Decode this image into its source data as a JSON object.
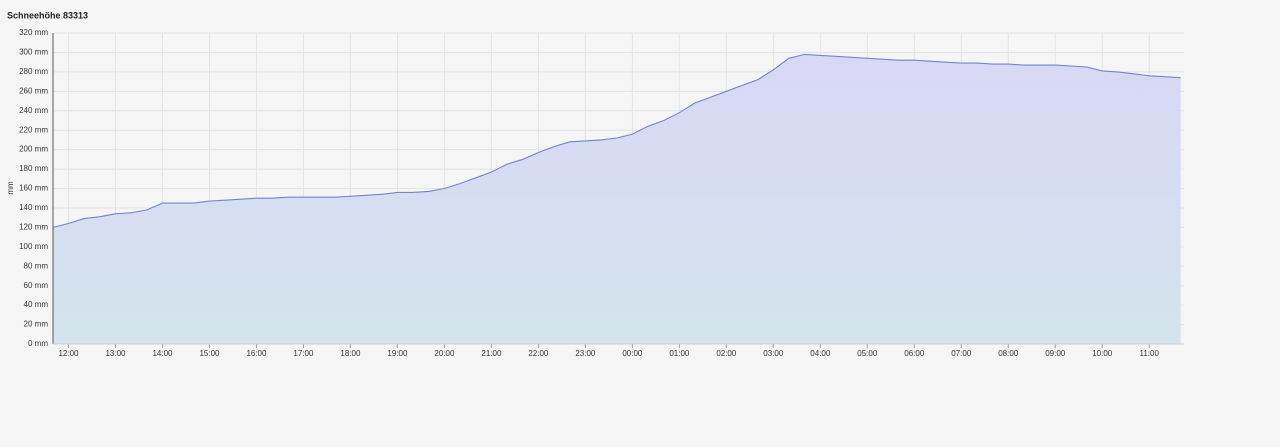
{
  "chart_data": {
    "type": "area",
    "title": "Schneehöhe 83313",
    "y_label": "mm",
    "color": "#7385cf",
    "grid": true,
    "x": [
      11.67,
      12,
      12.33,
      12.67,
      13,
      13.33,
      13.67,
      14,
      14.33,
      14.67,
      15,
      15.33,
      15.67,
      16,
      16.33,
      16.67,
      17,
      17.33,
      17.67,
      18,
      18.33,
      18.67,
      19,
      19.33,
      19.67,
      20,
      20.33,
      20.67,
      21,
      21.33,
      21.67,
      22,
      22.33,
      22.67,
      23,
      23.33,
      23.67,
      24,
      24.33,
      24.67,
      25,
      25.33,
      25.67,
      26,
      26.33,
      26.67,
      27,
      27.33,
      27.67,
      28,
      28.33,
      28.67,
      29,
      29.33,
      29.67,
      30,
      30.33,
      30.67,
      31,
      31.33,
      31.67,
      32,
      32.33,
      32.67,
      33,
      33.33,
      33.67,
      34,
      34.33,
      34.67,
      35,
      35.33,
      35.67
    ],
    "values": [
      120,
      124,
      129,
      131,
      134,
      135,
      138,
      145,
      145,
      145,
      147,
      148,
      149,
      150,
      150,
      151,
      151,
      151,
      151,
      152,
      153,
      154,
      156,
      156,
      157,
      160,
      165,
      171,
      177,
      185,
      190,
      197,
      203,
      208,
      209,
      210,
      212,
      216,
      224,
      230,
      238,
      248,
      254,
      260,
      266,
      272,
      282,
      294,
      298,
      297,
      296,
      295,
      294,
      293,
      292,
      292,
      291,
      290,
      289,
      289,
      288,
      288,
      287,
      287,
      287,
      286,
      285,
      281,
      280,
      278,
      276,
      275,
      274
    ],
    "xlim": [
      11.67,
      35.74
    ],
    "xticks": [
      {
        "value": 12,
        "label": "12:00"
      },
      {
        "value": 13,
        "label": "13:00"
      },
      {
        "value": 14,
        "label": "14:00"
      },
      {
        "value": 15,
        "label": "15:00"
      },
      {
        "value": 16,
        "label": "16:00"
      },
      {
        "value": 17,
        "label": "17:00"
      },
      {
        "value": 18,
        "label": "18:00"
      },
      {
        "value": 19,
        "label": "19:00"
      },
      {
        "value": 20,
        "label": "20:00"
      },
      {
        "value": 21,
        "label": "21:00"
      },
      {
        "value": 22,
        "label": "22:00"
      },
      {
        "value": 23,
        "label": "23:00"
      },
      {
        "value": 24,
        "label": "00:00"
      },
      {
        "value": 25,
        "label": "01:00"
      },
      {
        "value": 26,
        "label": "02:00"
      },
      {
        "value": 27,
        "label": "03:00"
      },
      {
        "value": 28,
        "label": "04:00"
      },
      {
        "value": 29,
        "label": "05:00"
      },
      {
        "value": 30,
        "label": "06:00"
      },
      {
        "value": 31,
        "label": "07:00"
      },
      {
        "value": 32,
        "label": "08:00"
      },
      {
        "value": 33,
        "label": "09:00"
      },
      {
        "value": 34,
        "label": "10:00"
      },
      {
        "value": 35,
        "label": "11:00"
      }
    ],
    "ylim": [
      0,
      320
    ],
    "yticks": [
      {
        "value": 0,
        "label": "0 mm"
      },
      {
        "value": 20,
        "label": "20 mm"
      },
      {
        "value": 40,
        "label": "40 mm"
      },
      {
        "value": 60,
        "label": "60 mm"
      },
      {
        "value": 80,
        "label": "80 mm"
      },
      {
        "value": 100,
        "label": "100 mm"
      },
      {
        "value": 120,
        "label": "120 mm"
      },
      {
        "value": 140,
        "label": "140 mm"
      },
      {
        "value": 160,
        "label": "160 mm"
      },
      {
        "value": 180,
        "label": "180 mm"
      },
      {
        "value": 200,
        "label": "200 mm"
      },
      {
        "value": 220,
        "label": "220 mm"
      },
      {
        "value": 240,
        "label": "240 mm"
      },
      {
        "value": 260,
        "label": "260 mm"
      },
      {
        "value": 280,
        "label": "280 mm"
      },
      {
        "value": 300,
        "label": "300 mm"
      },
      {
        "value": 320,
        "label": "320 mm"
      }
    ]
  }
}
